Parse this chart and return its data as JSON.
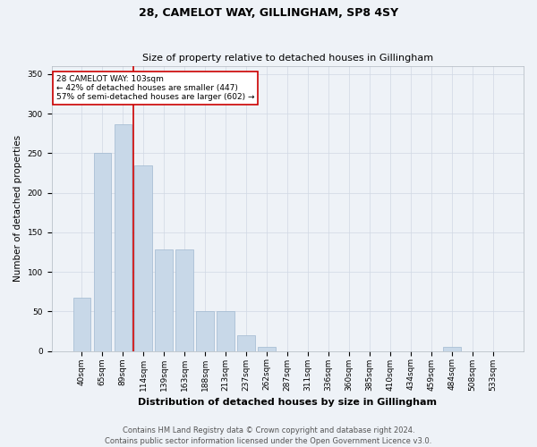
{
  "title": "28, CAMELOT WAY, GILLINGHAM, SP8 4SY",
  "subtitle": "Size of property relative to detached houses in Gillingham",
  "xlabel": "Distribution of detached houses by size in Gillingham",
  "ylabel": "Number of detached properties",
  "footnote1": "Contains HM Land Registry data © Crown copyright and database right 2024.",
  "footnote2": "Contains public sector information licensed under the Open Government Licence v3.0.",
  "categories": [
    "40sqm",
    "65sqm",
    "89sqm",
    "114sqm",
    "139sqm",
    "163sqm",
    "188sqm",
    "213sqm",
    "237sqm",
    "262sqm",
    "287sqm",
    "311sqm",
    "336sqm",
    "360sqm",
    "385sqm",
    "410sqm",
    "434sqm",
    "459sqm",
    "484sqm",
    "508sqm",
    "533sqm"
  ],
  "values": [
    67,
    250,
    287,
    235,
    128,
    128,
    50,
    50,
    20,
    5,
    0,
    0,
    0,
    0,
    0,
    0,
    0,
    0,
    5,
    0,
    0
  ],
  "bar_color": "#c8d8e8",
  "bar_edge_color": "#a0b8d0",
  "red_line_x": 2.5,
  "annotation_text": "28 CAMELOT WAY: 103sqm\n← 42% of detached houses are smaller (447)\n57% of semi-detached houses are larger (602) →",
  "annotation_box_color": "#ffffff",
  "annotation_box_edge_color": "#cc0000",
  "ylim": [
    0,
    360
  ],
  "yticks": [
    0,
    50,
    100,
    150,
    200,
    250,
    300,
    350
  ],
  "background_color": "#eef2f7",
  "grid_color": "#d0d8e4",
  "title_fontsize": 9,
  "subtitle_fontsize": 8,
  "xlabel_fontsize": 8,
  "ylabel_fontsize": 7.5,
  "tick_fontsize": 6.5,
  "annotation_fontsize": 6.5,
  "footnote_fontsize": 6
}
